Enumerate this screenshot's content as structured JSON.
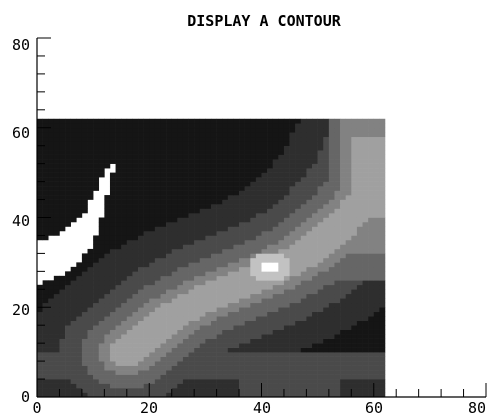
{
  "chart_data": {
    "type": "heatmap",
    "title": "DISPLAY A CONTOUR",
    "xlabel": "",
    "ylabel": "",
    "xlim": [
      0,
      80
    ],
    "ylim": [
      0,
      80
    ],
    "x_ticks": [
      "0",
      "20",
      "40",
      "60",
      "80"
    ],
    "y_ticks": [
      "0",
      "20",
      "40",
      "60",
      "80"
    ],
    "x_minor_step": 4,
    "y_minor_step": 4,
    "data_extent": {
      "x": [
        0,
        62
      ],
      "y": [
        0,
        62
      ]
    },
    "grid": false,
    "levels": [
      {
        "level": 0,
        "color": "#151515"
      },
      {
        "level": 1,
        "color": "#2e2e2e"
      },
      {
        "level": 2,
        "color": "#4a4a4a"
      },
      {
        "level": 3,
        "color": "#666666"
      },
      {
        "level": 4,
        "color": "#828282"
      },
      {
        "level": 5,
        "color": "#a0a0a0"
      },
      {
        "level": 6,
        "color": "#c2c2c2"
      },
      {
        "level": 7,
        "color": "#ffffff"
      }
    ],
    "features": {
      "ridge_line": [
        [
          16,
          10
        ],
        [
          24,
          18
        ],
        [
          30,
          22
        ],
        [
          36,
          25
        ],
        [
          42,
          28
        ],
        [
          48,
          32
        ],
        [
          54,
          38
        ],
        [
          60,
          46
        ],
        [
          62,
          52
        ]
      ],
      "peak": [
        41.5,
        29
      ],
      "missing_region": [
        [
          0,
          25
        ],
        [
          0,
          35
        ],
        [
          4,
          36
        ],
        [
          8,
          40
        ],
        [
          12,
          50
        ],
        [
          14,
          52
        ],
        [
          12,
          42
        ],
        [
          10,
          34
        ],
        [
          6,
          28
        ],
        [
          2,
          26
        ]
      ],
      "lower_flat_region_top": 10
    }
  }
}
